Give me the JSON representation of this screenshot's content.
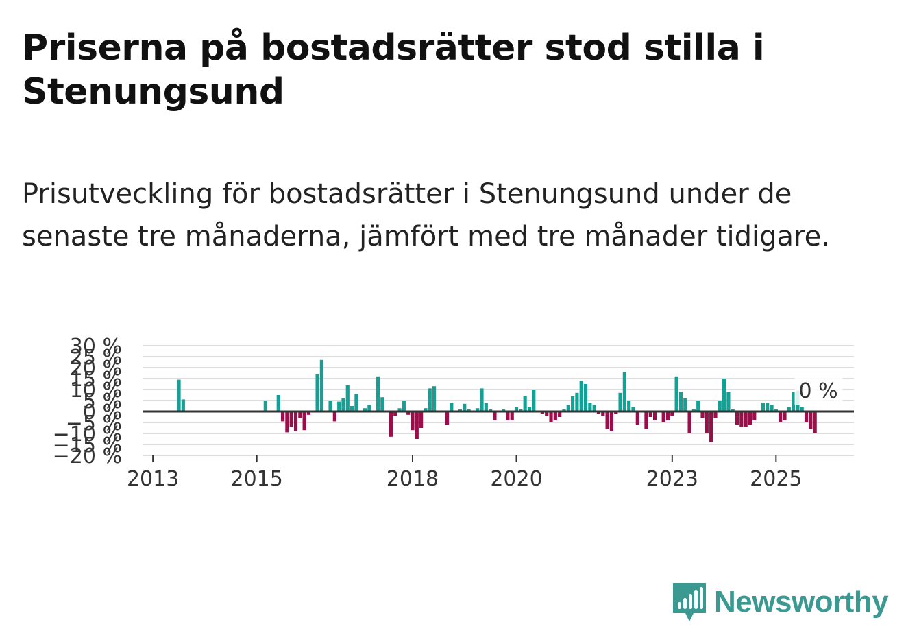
{
  "title": "Priserna på bostadsrätter stod stilla i Stenungsund",
  "subtitle": "Prisutveckling för bostadsrätter i Stenungsund under de senaste tre månaderna, jämfört med tre månader tidigare.",
  "brand": {
    "name": "Newsworthy",
    "color": "#3a9a92"
  },
  "colors": {
    "positive": "#13a195",
    "negative": "#9b0e4a",
    "grid": "#dddddd",
    "zero": "#333333"
  },
  "chart_data": {
    "type": "bar",
    "title": "Priserna på bostadsrätter stod stilla i Stenungsund",
    "xlabel": "",
    "ylabel": "",
    "ylim": [
      -20,
      30
    ],
    "y_ticks": [
      -20,
      -15,
      -10,
      -5,
      0,
      5,
      10,
      15,
      20,
      25,
      30
    ],
    "y_tick_labels": [
      "−20 %",
      "−15 %",
      "−10 %",
      "−5 %",
      "0 %",
      "5 %",
      "10 %",
      "15 %",
      "20 %",
      "25 %",
      "30 %"
    ],
    "x_ticks": [
      2013,
      2015,
      2018,
      2020,
      2023,
      2025
    ],
    "x_tick_labels": [
      "2013",
      "2015",
      "2018",
      "2020",
      "2023",
      "2025"
    ],
    "x_range": [
      2012.8,
      2026.5
    ],
    "last_value_label": "0 %",
    "series": [
      {
        "name": "Prisutveckling",
        "points": [
          {
            "date": "2013-07",
            "value": 14.5
          },
          {
            "date": "2013-08",
            "value": 5.5
          },
          {
            "date": "2015-03",
            "value": 5
          },
          {
            "date": "2015-06",
            "value": 7.5
          },
          {
            "date": "2015-07",
            "value": -4.5
          },
          {
            "date": "2015-08",
            "value": -9.5
          },
          {
            "date": "2015-09",
            "value": -7
          },
          {
            "date": "2015-10",
            "value": -9
          },
          {
            "date": "2015-11",
            "value": -3
          },
          {
            "date": "2015-12",
            "value": -8.5
          },
          {
            "date": "2016-01",
            "value": -1.5
          },
          {
            "date": "2016-03",
            "value": 17
          },
          {
            "date": "2016-04",
            "value": 23.5
          },
          {
            "date": "2016-06",
            "value": 5
          },
          {
            "date": "2016-07",
            "value": -4.5
          },
          {
            "date": "2016-08",
            "value": 4.5
          },
          {
            "date": "2016-09",
            "value": 6
          },
          {
            "date": "2016-10",
            "value": 12
          },
          {
            "date": "2016-11",
            "value": 2.5
          },
          {
            "date": "2016-12",
            "value": 8
          },
          {
            "date": "2017-02",
            "value": 1.5
          },
          {
            "date": "2017-03",
            "value": 3
          },
          {
            "date": "2017-05",
            "value": 16
          },
          {
            "date": "2017-06",
            "value": 6.5
          },
          {
            "date": "2017-08",
            "value": -11.5
          },
          {
            "date": "2017-09",
            "value": -2
          },
          {
            "date": "2017-10",
            "value": 1.5
          },
          {
            "date": "2017-11",
            "value": 5
          },
          {
            "date": "2017-12",
            "value": -1.5
          },
          {
            "date": "2018-01",
            "value": -8.5
          },
          {
            "date": "2018-02",
            "value": -12.5
          },
          {
            "date": "2018-03",
            "value": -7.5
          },
          {
            "date": "2018-04",
            "value": 1.5
          },
          {
            "date": "2018-05",
            "value": 10.5
          },
          {
            "date": "2018-06",
            "value": 11.5
          },
          {
            "date": "2018-09",
            "value": -6
          },
          {
            "date": "2018-10",
            "value": 4
          },
          {
            "date": "2018-12",
            "value": 1
          },
          {
            "date": "2019-01",
            "value": 3.5
          },
          {
            "date": "2019-02",
            "value": 1
          },
          {
            "date": "2019-04",
            "value": 1.5
          },
          {
            "date": "2019-05",
            "value": 10.5
          },
          {
            "date": "2019-06",
            "value": 4
          },
          {
            "date": "2019-07",
            "value": 1
          },
          {
            "date": "2019-08",
            "value": -4
          },
          {
            "date": "2019-10",
            "value": 1
          },
          {
            "date": "2019-11",
            "value": -4
          },
          {
            "date": "2019-12",
            "value": -4
          },
          {
            "date": "2020-01",
            "value": 2
          },
          {
            "date": "2020-02",
            "value": 1
          },
          {
            "date": "2020-03",
            "value": 7
          },
          {
            "date": "2020-04",
            "value": 2
          },
          {
            "date": "2020-05",
            "value": 10
          },
          {
            "date": "2020-07",
            "value": -1
          },
          {
            "date": "2020-08",
            "value": -2
          },
          {
            "date": "2020-09",
            "value": -5
          },
          {
            "date": "2020-10",
            "value": -4
          },
          {
            "date": "2020-11",
            "value": -2.5
          },
          {
            "date": "2020-12",
            "value": 1
          },
          {
            "date": "2021-01",
            "value": 3
          },
          {
            "date": "2021-02",
            "value": 7
          },
          {
            "date": "2021-03",
            "value": 8.5
          },
          {
            "date": "2021-04",
            "value": 14
          },
          {
            "date": "2021-05",
            "value": 12.5
          },
          {
            "date": "2021-06",
            "value": 4
          },
          {
            "date": "2021-07",
            "value": 3
          },
          {
            "date": "2021-08",
            "value": -1
          },
          {
            "date": "2021-09",
            "value": -2
          },
          {
            "date": "2021-10",
            "value": -8
          },
          {
            "date": "2021-11",
            "value": -9
          },
          {
            "date": "2021-12",
            "value": -1
          },
          {
            "date": "2022-01",
            "value": 8.5
          },
          {
            "date": "2022-02",
            "value": 18
          },
          {
            "date": "2022-03",
            "value": 5
          },
          {
            "date": "2022-04",
            "value": 2
          },
          {
            "date": "2022-05",
            "value": -6
          },
          {
            "date": "2022-07",
            "value": -8
          },
          {
            "date": "2022-08",
            "value": -2.5
          },
          {
            "date": "2022-09",
            "value": -4
          },
          {
            "date": "2022-11",
            "value": -5
          },
          {
            "date": "2022-12",
            "value": -4
          },
          {
            "date": "2023-01",
            "value": -2
          },
          {
            "date": "2023-02",
            "value": 16
          },
          {
            "date": "2023-03",
            "value": 9
          },
          {
            "date": "2023-04",
            "value": 6
          },
          {
            "date": "2023-05",
            "value": -10
          },
          {
            "date": "2023-06",
            "value": 1
          },
          {
            "date": "2023-07",
            "value": 5
          },
          {
            "date": "2023-08",
            "value": -3
          },
          {
            "date": "2023-09",
            "value": -10
          },
          {
            "date": "2023-10",
            "value": -14
          },
          {
            "date": "2023-11",
            "value": -3
          },
          {
            "date": "2023-12",
            "value": 5
          },
          {
            "date": "2024-01",
            "value": 15
          },
          {
            "date": "2024-02",
            "value": 9
          },
          {
            "date": "2024-03",
            "value": 1
          },
          {
            "date": "2024-04",
            "value": -6
          },
          {
            "date": "2024-05",
            "value": -7
          },
          {
            "date": "2024-06",
            "value": -7
          },
          {
            "date": "2024-07",
            "value": -6
          },
          {
            "date": "2024-08",
            "value": -4
          },
          {
            "date": "2024-10",
            "value": 4
          },
          {
            "date": "2024-11",
            "value": 4
          },
          {
            "date": "2024-12",
            "value": 3
          },
          {
            "date": "2025-01",
            "value": 1
          },
          {
            "date": "2025-02",
            "value": -5
          },
          {
            "date": "2025-03",
            "value": -4
          },
          {
            "date": "2025-04",
            "value": 2
          },
          {
            "date": "2025-05",
            "value": 9
          },
          {
            "date": "2025-06",
            "value": 9.5
          },
          {
            "date": "2025-07",
            "value": 2
          },
          {
            "date": "2025-08",
            "value": -5
          },
          {
            "date": "2025-09",
            "value": -8
          },
          {
            "date": "2025-10",
            "value": -10
          },
          {
            "date": "2025-11",
            "value": 0
          }
        ]
      }
    ]
  }
}
